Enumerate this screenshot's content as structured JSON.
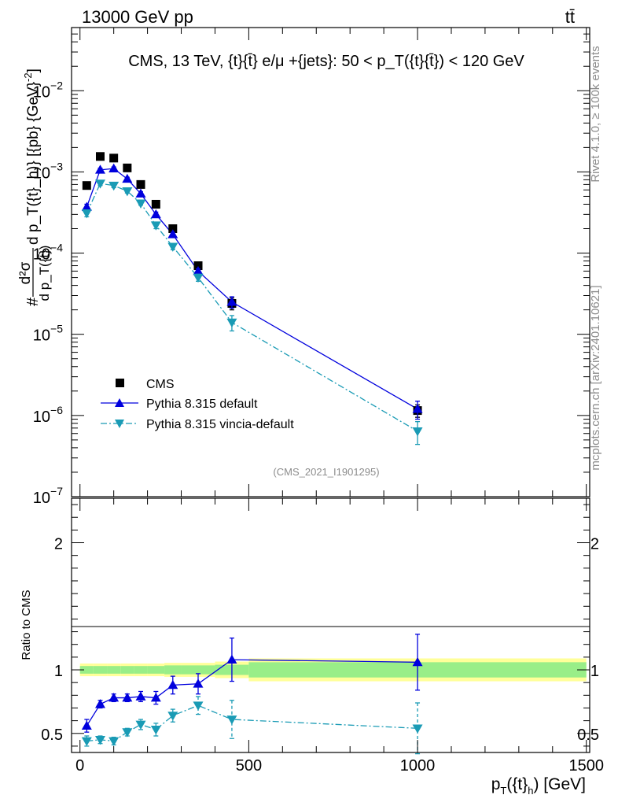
{
  "header": {
    "energy_label": "13000 GeV pp",
    "process_label": "tt̄",
    "rivet_label": "Rivet 4.1.0, ≥ 100k events",
    "mcplots_label": "mcplots.cern.ch [arXiv:2401.10621]",
    "analysis_id": "(CMS_2021_I1901295)"
  },
  "chart_data": [
    {
      "type": "line",
      "panel": "main",
      "title": "CMS, 13 TeV, {t}{t̄} e/μ +{jets}: 50 <  p_T({t}{t̄}) < 120 GeV",
      "ylabel": "# d²σ / d p_T({t̄}) d p_T({t}_h)} [{pb} {GeV}⁻²]",
      "ylabel_parts": {
        "hash": "#",
        "num": "d²σ",
        "den1": "d p_T({t̄})",
        "mid": "d p_T({t}_h)} [{pb} {GeV}",
        "exp": "-2",
        "close": "]"
      },
      "yscale": "log",
      "ylim": [
        1e-07,
        0.06
      ],
      "xlim": [
        -25,
        1510
      ],
      "y_tick_labels": [
        {
          "v": 1e-07,
          "base": "10",
          "exp": "−7"
        },
        {
          "v": 1e-06,
          "base": "10",
          "exp": "−6"
        },
        {
          "v": 1e-05,
          "base": "10",
          "exp": "−5"
        },
        {
          "v": 0.0001,
          "base": "10",
          "exp": "−4"
        },
        {
          "v": 0.001,
          "base": "10",
          "exp": "−3"
        },
        {
          "v": 0.01,
          "base": "10",
          "exp": "−2"
        }
      ],
      "legend_position": "bottom-left",
      "series": [
        {
          "name": "CMS",
          "style": "data",
          "color": "#000000",
          "x": [
            20,
            60,
            100,
            140,
            180,
            225,
            275,
            350,
            450,
            1000
          ],
          "y": [
            0.00068,
            0.00155,
            0.00148,
            0.00112,
            0.0007,
            0.0004,
            0.0002,
            7e-05,
            2.4e-05,
            1.15e-06
          ],
          "err_lo": [
            0,
            0,
            0,
            0,
            0,
            0,
            0,
            5e-06,
            4e-06,
            2e-07
          ],
          "err_hi": [
            0,
            0,
            0,
            0,
            0,
            0,
            0,
            5e-06,
            4e-06,
            2e-07
          ]
        },
        {
          "name": "Pythia 8.315 default",
          "style": "solid",
          "color": "#0000dd",
          "marker": "triangle-up",
          "x": [
            20,
            60,
            100,
            140,
            180,
            225,
            275,
            350,
            450,
            1000
          ],
          "y": [
            0.00037,
            0.00106,
            0.0011,
            0.00082,
            0.00054,
            0.0003,
            0.00017,
            6e-05,
            2.5e-05,
            1.2e-06
          ],
          "err_lo": [
            3e-05,
            5e-05,
            5e-05,
            4e-05,
            3e-05,
            2e-05,
            1e-05,
            4e-06,
            4e-06,
            3e-07
          ],
          "err_hi": [
            3e-05,
            5e-05,
            5e-05,
            4e-05,
            3e-05,
            2e-05,
            1e-05,
            4e-06,
            4e-06,
            3e-07
          ]
        },
        {
          "name": "Pythia 8.315 vincia-default",
          "style": "dashdot",
          "color": "#1a9bb5",
          "marker": "triangle-down",
          "x": [
            20,
            60,
            100,
            140,
            180,
            225,
            275,
            350,
            450,
            1000
          ],
          "y": [
            0.00031,
            0.00072,
            0.00068,
            0.00058,
            0.00041,
            0.00022,
            0.00012,
            5e-05,
            1.4e-05,
            6.4e-07
          ],
          "err_lo": [
            3e-05,
            4e-05,
            4e-05,
            3e-05,
            2e-05,
            2e-05,
            1e-05,
            5e-06,
            3e-06,
            2e-07
          ],
          "err_hi": [
            3e-05,
            4e-05,
            4e-05,
            3e-05,
            2e-05,
            2e-05,
            1e-05,
            5e-06,
            3e-06,
            2e-07
          ]
        }
      ]
    },
    {
      "type": "line",
      "panel": "ratio",
      "ylabel": "Ratio to CMS",
      "xlabel": "p_T({t}_h) [GeV]",
      "xlabel_parts": {
        "p": "p",
        "T": "T",
        "mid": "({t}",
        "h": "h",
        "close": ") [GeV]"
      },
      "ylim": [
        0.35,
        2.35
      ],
      "xlim": [
        -25,
        1510
      ],
      "y_tick_labels": [
        "0.5",
        "1",
        "2"
      ],
      "y_tick_values": [
        0.5,
        1,
        2
      ],
      "x_tick_labels": [
        "0",
        "500",
        "1000",
        "1500"
      ],
      "x_tick_values": [
        0,
        500,
        1000,
        1500
      ],
      "bins": [
        0,
        40,
        80,
        120,
        160,
        200,
        250,
        300,
        400,
        500,
        1500
      ],
      "band_yellow_half": [
        0.05,
        0.05,
        0.05,
        0.05,
        0.05,
        0.05,
        0.055,
        0.055,
        0.065,
        0.09
      ],
      "band_green_half": [
        0.03,
        0.03,
        0.03,
        0.03,
        0.03,
        0.03,
        0.035,
        0.035,
        0.04,
        0.06
      ],
      "series": [
        {
          "name": "Pythia 8.315 default",
          "style": "solid",
          "color": "#0000dd",
          "marker": "triangle-up",
          "x": [
            20,
            60,
            100,
            140,
            180,
            225,
            275,
            350,
            450,
            1000
          ],
          "y": [
            0.56,
            0.73,
            0.78,
            0.78,
            0.79,
            0.78,
            0.88,
            0.89,
            1.08,
            1.06
          ],
          "err": [
            0.05,
            0.03,
            0.03,
            0.03,
            0.04,
            0.05,
            0.07,
            0.08,
            0.17,
            0.22
          ]
        },
        {
          "name": "Pythia 8.315 vincia-default",
          "style": "dashdot",
          "color": "#1a9bb5",
          "marker": "triangle-down",
          "x": [
            20,
            60,
            100,
            140,
            180,
            225,
            275,
            350,
            450,
            1000
          ],
          "y": [
            0.44,
            0.45,
            0.44,
            0.51,
            0.57,
            0.53,
            0.64,
            0.72,
            0.61,
            0.54
          ],
          "err": [
            0.04,
            0.03,
            0.03,
            0.03,
            0.04,
            0.05,
            0.05,
            0.07,
            0.15,
            0.2
          ]
        }
      ]
    }
  ]
}
